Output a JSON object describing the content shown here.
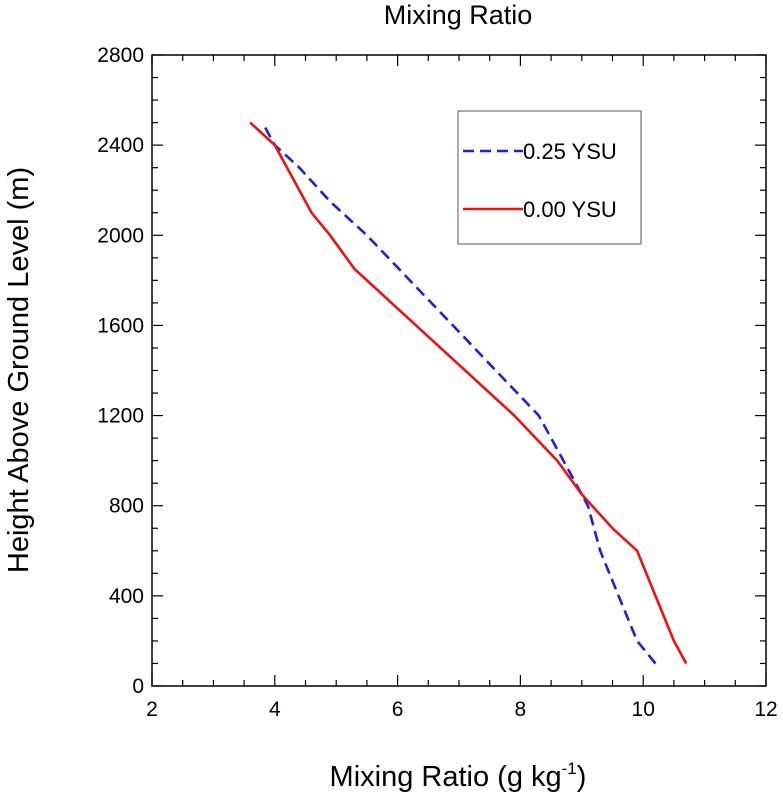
{
  "chart_data": {
    "type": "line",
    "title": "Mixing Ratio",
    "xlabel_main": "Mixing Ratio (g kg",
    "xlabel_sup": "-1",
    "xlabel_tail": ")",
    "ylabel": "Height Above Ground Level (m)",
    "xlim": [
      2,
      12
    ],
    "ylim": [
      0,
      2800
    ],
    "xticks": [
      2,
      4,
      6,
      8,
      10,
      12
    ],
    "yticks": [
      0,
      400,
      800,
      1200,
      1600,
      2000,
      2400,
      2800
    ],
    "legend_position": "top-right",
    "series": [
      {
        "name": "0.25 YSU",
        "color": "#1f1fdd",
        "style": "dashed",
        "x": [
          10.2,
          9.9,
          9.6,
          9.3,
          9.1,
          8.9,
          8.7,
          8.3,
          7.6,
          6.9,
          6.2,
          5.5,
          4.9,
          4.4,
          4.0,
          3.8
        ],
        "y": [
          100,
          200,
          400,
          600,
          800,
          900,
          1000,
          1200,
          1400,
          1600,
          1800,
          2000,
          2150,
          2300,
          2400,
          2500
        ]
      },
      {
        "name": "0.00 YSU",
        "color": "#ee1111",
        "style": "solid",
        "x": [
          10.7,
          10.5,
          10.2,
          9.9,
          9.5,
          9.0,
          8.6,
          7.9,
          6.9,
          5.9,
          5.3,
          4.9,
          4.6,
          4.0,
          3.6
        ],
        "y": [
          100,
          200,
          400,
          600,
          700,
          850,
          1000,
          1200,
          1450,
          1700,
          1850,
          2000,
          2100,
          2400,
          2500
        ]
      }
    ]
  }
}
